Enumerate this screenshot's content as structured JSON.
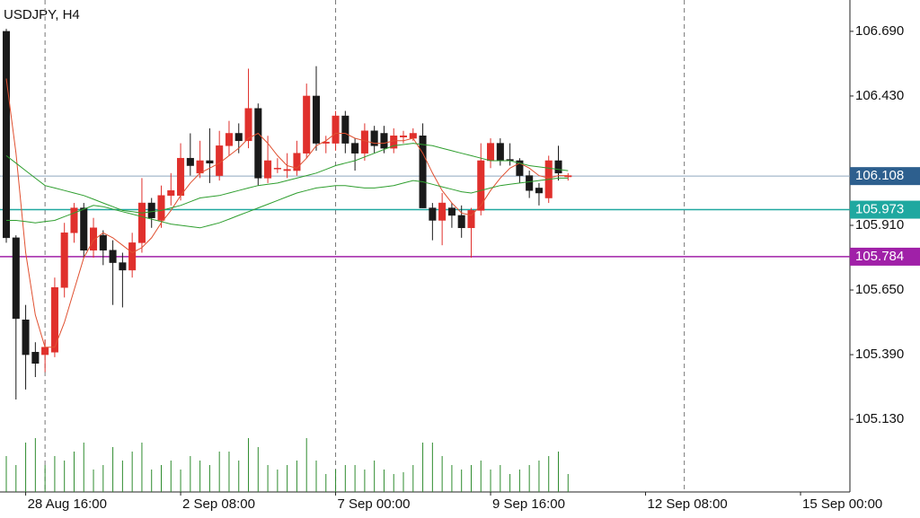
{
  "chart_data": {
    "type": "candlestick",
    "title": "USDJPY, H4",
    "up_color": "#e0302c",
    "down_color": "#1a1a1a",
    "open": [
      106.69,
      105.86,
      105.53,
      105.4,
      105.39,
      105.4,
      105.66,
      105.88,
      105.98,
      105.81,
      105.87,
      105.81,
      105.76,
      105.73,
      105.84,
      106.0,
      105.93,
      106.03,
      106.03,
      106.18,
      106.12,
      106.17,
      106.11,
      106.23,
      106.28,
      106.25,
      106.38,
      106.1,
      106.138,
      106.13,
      106.13,
      106.2,
      106.43,
      106.24,
      106.24,
      106.35,
      106.24,
      106.2,
      106.29,
      106.28,
      106.22,
      106.265,
      106.26,
      106.27,
      105.98,
      105.93,
      105.98,
      105.95,
      105.9,
      105.97,
      106.17,
      106.24,
      106.175,
      106.17,
      106.11,
      106.06,
      106.02,
      106.17,
      106.105
    ],
    "high": [
      106.7,
      105.87,
      105.59,
      105.44,
      105.45,
      105.7,
      105.92,
      106.0,
      106.0,
      105.94,
      105.89,
      105.85,
      105.8,
      105.88,
      106.1,
      106.02,
      106.07,
      106.12,
      106.24,
      106.28,
      106.25,
      106.3,
      106.29,
      106.33,
      106.32,
      106.54,
      106.4,
      106.27,
      106.18,
      106.2,
      106.25,
      106.48,
      106.55,
      106.27,
      106.37,
      106.37,
      106.26,
      106.32,
      106.31,
      106.31,
      106.3,
      106.29,
      106.3,
      106.32,
      106.0,
      106.04,
      106.0,
      105.99,
      105.98,
      106.24,
      106.26,
      106.26,
      106.24,
      106.18,
      106.13,
      106.08,
      106.19,
      106.23,
      106.12
    ],
    "low": [
      105.84,
      105.21,
      105.25,
      105.3,
      105.32,
      105.38,
      105.62,
      105.84,
      105.78,
      105.78,
      105.75,
      105.59,
      105.58,
      105.7,
      105.8,
      105.9,
      105.9,
      105.99,
      106.01,
      106.11,
      106.1,
      106.08,
      106.09,
      106.19,
      106.2,
      106.22,
      106.07,
      106.08,
      106.12,
      106.1,
      106.11,
      106.18,
      106.21,
      106.2,
      106.21,
      106.2,
      106.13,
      106.17,
      106.2,
      106.2,
      106.2,
      106.24,
      106.25,
      105.98,
      105.85,
      105.83,
      105.9,
      105.86,
      105.78,
      105.95,
      106.14,
      106.15,
      106.15,
      106.08,
      106.02,
      105.99,
      106.0,
      106.09,
      106.09
    ],
    "close": [
      105.86,
      105.535,
      105.39,
      105.355,
      105.42,
      105.66,
      105.88,
      105.98,
      105.81,
      105.9,
      105.81,
      105.76,
      105.73,
      105.84,
      106.0,
      105.94,
      106.03,
      106.05,
      106.18,
      106.15,
      106.17,
      106.16,
      106.23,
      106.28,
      106.25,
      106.38,
      106.1,
      106.17,
      106.14,
      106.135,
      106.2,
      106.43,
      106.24,
      106.245,
      106.35,
      106.24,
      106.2,
      106.29,
      106.23,
      106.22,
      106.27,
      106.27,
      106.28,
      105.98,
      105.93,
      106.0,
      105.95,
      105.9,
      105.97,
      106.17,
      106.24,
      106.17,
      106.17,
      106.11,
      106.05,
      106.04,
      106.17,
      106.12,
      106.11
    ],
    "series": [
      {
        "color": "#e05030",
        "values": [
          106.5,
          106.2,
          105.8,
          105.55,
          105.42,
          105.42,
          105.52,
          105.65,
          105.78,
          105.85,
          105.88,
          105.86,
          105.83,
          105.8,
          105.82,
          105.86,
          105.92,
          105.97,
          106.03,
          106.08,
          106.12,
          106.14,
          106.16,
          106.19,
          106.22,
          106.26,
          106.28,
          106.24,
          106.19,
          106.15,
          106.14,
          106.18,
          106.23,
          106.25,
          106.28,
          106.28,
          106.26,
          106.25,
          106.24,
          106.24,
          106.25,
          106.25,
          106.26,
          106.2,
          106.12,
          106.05,
          106.0,
          105.96,
          105.95,
          105.99,
          106.05,
          106.1,
          106.14,
          106.16,
          106.14,
          106.11,
          106.1,
          106.11,
          106.11
        ]
      },
      {
        "color": "#2e9e2e",
        "values": [
          106.19,
          106.16,
          106.13,
          106.1,
          106.07,
          106.06,
          106.05,
          106.04,
          106.03,
          106.015,
          106.0,
          105.985,
          105.97,
          105.965,
          105.96,
          105.965,
          105.97,
          105.98,
          105.99,
          106.005,
          106.02,
          106.025,
          106.03,
          106.04,
          106.05,
          106.06,
          106.07,
          106.075,
          106.08,
          106.09,
          106.1,
          106.11,
          106.12,
          106.135,
          106.15,
          106.16,
          106.17,
          106.185,
          106.2,
          106.215,
          106.23,
          106.235,
          106.24,
          106.235,
          106.23,
          106.22,
          106.21,
          106.2,
          106.19,
          106.18,
          106.17,
          106.17,
          106.17,
          106.16,
          106.15,
          106.145,
          106.14,
          106.135,
          106.13
        ]
      },
      {
        "color": "#2e9e2e",
        "values": [
          105.93,
          105.93,
          105.925,
          105.92,
          105.925,
          105.93,
          105.945,
          105.96,
          105.975,
          105.99,
          105.985,
          105.975,
          105.965,
          105.955,
          105.945,
          105.935,
          105.925,
          105.915,
          105.91,
          105.905,
          105.9,
          105.91,
          105.92,
          105.935,
          105.95,
          105.965,
          105.98,
          105.995,
          106.01,
          106.025,
          106.04,
          106.05,
          106.06,
          106.065,
          106.07,
          106.07,
          106.065,
          106.06,
          106.06,
          106.065,
          106.07,
          106.08,
          106.09,
          106.085,
          106.075,
          106.065,
          106.055,
          106.045,
          106.04,
          106.05,
          106.06,
          106.07,
          106.075,
          106.08,
          106.085,
          106.09,
          106.095,
          106.1,
          106.1
        ]
      }
    ],
    "volume_color": "#2e8b2e",
    "vlim": [
      0,
      100
    ],
    "volume_values": [
      40,
      30,
      55,
      60,
      30,
      40,
      35,
      45,
      55,
      25,
      30,
      50,
      35,
      45,
      55,
      25,
      30,
      35,
      25,
      40,
      35,
      30,
      45,
      45,
      35,
      60,
      50,
      30,
      25,
      30,
      35,
      60,
      35,
      20,
      25,
      30,
      30,
      25,
      35,
      25,
      20,
      22,
      30,
      55,
      55,
      40,
      30,
      25,
      30,
      35,
      25,
      30,
      20,
      25,
      30,
      35,
      40,
      45,
      20
    ],
    "xlim": [
      -0.65,
      87.1
    ],
    "xticks": [
      {
        "value": 2,
        "label": "28 Aug 16:00"
      },
      {
        "value": 18,
        "label": "2 Sep 08:00"
      },
      {
        "value": 34,
        "label": "7 Sep 00:00"
      },
      {
        "value": 50,
        "label": "9 Sep 16:00"
      },
      {
        "value": 66,
        "label": "12 Sep 08:00"
      },
      {
        "value": 82,
        "label": "15 Sep 00:00"
      }
    ],
    "separators": [
      4,
      34,
      70
    ],
    "ylim": [
      104.838,
      106.816
    ],
    "yticks": [
      {
        "value": 106.69,
        "label": "106.690"
      },
      {
        "value": 106.43,
        "label": "106.430"
      },
      {
        "value": 105.91,
        "label": "105.910"
      },
      {
        "value": 105.65,
        "label": "105.650"
      },
      {
        "value": 105.39,
        "label": "105.390"
      },
      {
        "value": 105.13,
        "label": "105.130"
      }
    ],
    "levels": [
      {
        "value": 106.108,
        "color": "#8fa6bf",
        "label_color": "#2d5f8e"
      },
      {
        "value": 105.973,
        "color": "#1fa8a0",
        "label_color": "#1fa8a0"
      },
      {
        "value": 105.784,
        "color": "#a020a8",
        "label_color": "#a020a8"
      }
    ]
  }
}
